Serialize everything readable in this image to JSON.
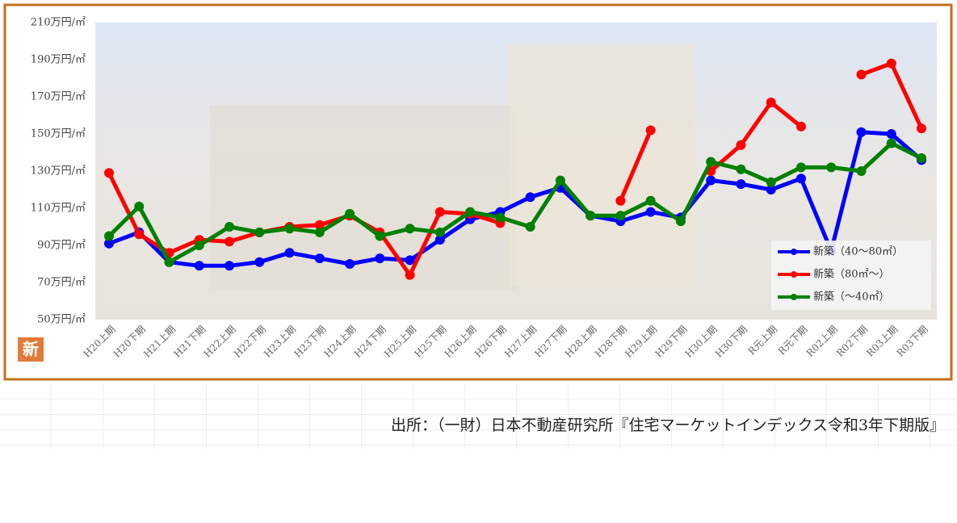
{
  "chart_data": {
    "type": "line",
    "categories": [
      "H20上期",
      "H20下期",
      "H21上期",
      "H21下期",
      "H22上期",
      "H22下期",
      "H23上期",
      "H23下期",
      "H24上期",
      "H24下期",
      "H25上期",
      "H25下期",
      "H26上期",
      "H26下期",
      "H27上期",
      "H27下期",
      "H28上期",
      "H28下期",
      "H29上期",
      "H29下期",
      "H30上期",
      "H30下期",
      "R元上期",
      "R元下期",
      "R02上期",
      "R02下期",
      "R03上期",
      "R03下期"
    ],
    "series": [
      {
        "name": "新築（40～80㎡）",
        "color": "#0000ff",
        "values": [
          91,
          97,
          81,
          79,
          79,
          81,
          86,
          83,
          80,
          83,
          82,
          93,
          104,
          108,
          116,
          121,
          106,
          103,
          108,
          105,
          125,
          123,
          120,
          126,
          87,
          151,
          150,
          136
        ]
      },
      {
        "name": "新築（80㎡～）",
        "color": "#ff0000",
        "values": [
          129,
          96,
          86,
          93,
          92,
          97,
          100,
          101,
          106,
          97,
          74,
          108,
          107,
          102,
          null,
          null,
          null,
          114,
          152,
          null,
          130,
          144,
          167,
          154,
          null,
          182,
          188,
          153
        ]
      },
      {
        "name": "新築（～40㎡）",
        "color": "#008000",
        "values": [
          95,
          111,
          81,
          90,
          100,
          97,
          99,
          97,
          107,
          95,
          99,
          97,
          108,
          105,
          100,
          125,
          106,
          106,
          114,
          103,
          135,
          131,
          124,
          132,
          132,
          130,
          145,
          137
        ]
      }
    ],
    "ylim": [
      50,
      210
    ],
    "yticks": [
      {
        "value": 50,
        "label": "50万円/㎡"
      },
      {
        "value": 70,
        "label": "70万円/㎡"
      },
      {
        "value": 90,
        "label": "90万円/㎡"
      },
      {
        "value": 110,
        "label": "110万円/㎡"
      },
      {
        "value": 130,
        "label": "130万円/㎡"
      },
      {
        "value": 150,
        "label": "150万円/㎡"
      },
      {
        "value": 170,
        "label": "170万円/㎡"
      },
      {
        "value": 190,
        "label": "190万円/㎡"
      },
      {
        "value": 210,
        "label": "210万円/㎡"
      }
    ],
    "grid": false,
    "legend": "lower right",
    "badge": "新",
    "source": "出所：（一財）日本不動産研究所『住宅マーケットインデックス令和3年下期版』"
  }
}
